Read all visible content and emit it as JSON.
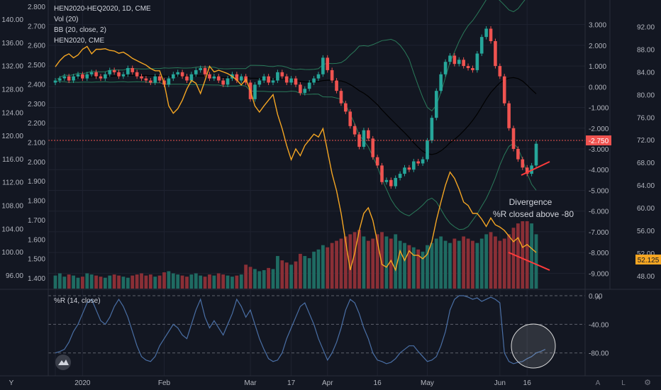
{
  "legend": {
    "symbol": "HEN2020-HEQ2020, 1D, CME",
    "vol": "Vol (20)",
    "bb": "BB (20, close, 2)",
    "overlay": "HEN2020, CME",
    "wr": "%R (14, close)"
  },
  "annotation": {
    "line1": "Divergence",
    "line2": "%R closed above -80"
  },
  "badges": {
    "spread_last": "-2.750",
    "right_last": "52.125"
  },
  "colors": {
    "background": "#131722",
    "up": "#26a69a",
    "down": "#ef5350",
    "overlay_line": "#f5a623",
    "bb_band": "#2a7a5a",
    "bb_basis": "#000000",
    "wr_line": "#4a6fa5",
    "annotation_line": "#ff3b3b",
    "highlight_circle": "#e0e0e0"
  },
  "chart_data": [
    {
      "type": "candlestick",
      "name": "HEN2020-HEQ2020",
      "x_axis_labels": [
        "Y",
        "2020",
        "Feb",
        "Mar",
        "17",
        "Apr",
        "16",
        "May",
        "Jun",
        "16"
      ],
      "center_scale_ticks": [
        3.0,
        2.0,
        1.0,
        0.0,
        -1.0,
        -2.0,
        -3.0,
        -4.0,
        -5.0,
        -6.0,
        -7.0,
        -8.0,
        -9.0
      ],
      "ylim": [
        -9.5,
        3.5
      ],
      "close": [
        0.3,
        0.4,
        0.5,
        0.3,
        0.5,
        0.6,
        0.4,
        0.6,
        0.7,
        0.5,
        0.4,
        0.6,
        0.8,
        0.7,
        0.5,
        0.6,
        0.9,
        0.7,
        0.5,
        0.4,
        0.3,
        0.2,
        0.5,
        0.3,
        0.1,
        0.4,
        0.6,
        0.7,
        0.5,
        0.3,
        0.6,
        0.8,
        0.9,
        0.6,
        0.4,
        0.5,
        0.3,
        0.1,
        0.4,
        0.6,
        0.3,
        0.5,
        0.2,
        -0.6,
        0.1,
        0.3,
        0.5,
        0.2,
        0.3,
        0.7,
        0.5,
        0.2,
        0.4,
        0.1,
        -0.3,
        -0.1,
        0.2,
        0.4,
        0.6,
        1.4,
        0.8,
        0.3,
        -0.2,
        -0.8,
        -1.2,
        -1.9,
        -2.3,
        -2.9,
        -2.1,
        -2.5,
        -3.4,
        -3.8,
        -4.6,
        -4.5,
        -4.8,
        -4.4,
        -4.2,
        -3.9,
        -4.0,
        -3.6,
        -3.7,
        -3.5,
        -2.6,
        -1.5,
        -0.2,
        0.6,
        1.2,
        1.5,
        1.1,
        1.3,
        1.0,
        0.9,
        0.8,
        1.6,
        2.4,
        2.8,
        2.2,
        1.0,
        0.5,
        -0.8,
        -2.0,
        -3.0,
        -3.5,
        -3.9,
        -4.2,
        -3.8,
        -2.75
      ]
    },
    {
      "type": "line",
      "name": "HEN2020, CME",
      "right_scale_ticks": [
        92.0,
        88.0,
        84.0,
        80.0,
        76.0,
        72.0,
        68.0,
        64.0,
        60.0,
        56.0,
        52.0,
        48.0
      ],
      "ylim": [
        46.6,
        94.2
      ],
      "values": [
        84.9,
        86.0,
        86.8,
        87.2,
        86.5,
        87.0,
        88.0,
        88.5,
        87.2,
        88.0,
        88.0,
        88.1,
        87.8,
        87.7,
        87.3,
        87.5,
        87.0,
        86.4,
        86.0,
        85.6,
        85.2,
        84.6,
        84.2,
        84.2,
        82.0,
        78.0,
        76.7,
        77.5,
        79.0,
        81.0,
        82.5,
        82.0,
        80.2,
        82.5,
        85.0,
        84.0,
        84.3,
        84.0,
        83.7,
        83.2,
        82.6,
        81.7,
        82.7,
        80.7,
        78.0,
        76.9,
        78.0,
        79.0,
        80.0,
        76.5,
        74.0,
        71.0,
        68.5,
        70.4,
        69.2,
        71.0,
        72.0,
        73.0,
        72.5,
        74.0,
        70.0,
        66.0,
        63.0,
        59.0,
        54.0,
        49.0,
        52.0,
        56.0,
        59.0,
        60.0,
        57.8,
        54.0,
        50.0,
        49.5,
        50.7,
        49.0,
        52.4,
        50.7,
        52.4,
        51.6,
        51.6,
        51.0,
        51.8,
        54.0,
        57.8,
        61.0,
        64.0,
        66.3,
        65.2,
        63.3,
        61.0,
        60.4,
        59.0,
        59.0,
        58.0,
        56.7,
        58.2,
        57.0,
        56.6,
        56.0,
        55.0,
        54.0,
        54.7,
        53.0,
        53.5,
        52.8,
        52.1
      ]
    },
    {
      "type": "bar",
      "name": "Vol (20)",
      "values": [
        12,
        14,
        11,
        13,
        12,
        10,
        11,
        14,
        13,
        12,
        11,
        10,
        12,
        13,
        12,
        11,
        10,
        12,
        13,
        14,
        12,
        13,
        11,
        12,
        15,
        16,
        14,
        13,
        12,
        11,
        13,
        14,
        12,
        11,
        13,
        12,
        14,
        13,
        12,
        11,
        12,
        13,
        22,
        20,
        18,
        16,
        17,
        19,
        18,
        30,
        26,
        24,
        22,
        25,
        32,
        30,
        28,
        34,
        36,
        40,
        38,
        42,
        44,
        46,
        48,
        50,
        52,
        54,
        48,
        44,
        46,
        50,
        52,
        48,
        46,
        50,
        44,
        42,
        40,
        38,
        36,
        34,
        40,
        42,
        46,
        48,
        44,
        42,
        46,
        44,
        48,
        46,
        44,
        42,
        46,
        50,
        52,
        48,
        44,
        46,
        50,
        56,
        60,
        62,
        62,
        60,
        50
      ]
    },
    {
      "type": "line",
      "name": "%R (14, close)",
      "wr_scale_ticks": [
        0.0,
        -40.0,
        -80.0
      ],
      "ylim": [
        -110,
        5
      ],
      "values": [
        -80,
        -78,
        -75,
        -65,
        -50,
        -40,
        -25,
        -10,
        -5,
        -20,
        -35,
        -40,
        -30,
        -15,
        -5,
        -15,
        -30,
        -50,
        -70,
        -85,
        -90,
        -92,
        -85,
        -70,
        -60,
        -50,
        -40,
        -45,
        -55,
        -60,
        -40,
        -20,
        -5,
        -30,
        -45,
        -35,
        -45,
        -55,
        -40,
        -25,
        -5,
        -15,
        -30,
        -20,
        -40,
        -60,
        -75,
        -88,
        -92,
        -90,
        -80,
        -60,
        -45,
        -30,
        -15,
        -10,
        -25,
        -40,
        -60,
        -75,
        -90,
        -80,
        -65,
        -45,
        -20,
        -5,
        -10,
        -25,
        -45,
        -60,
        -80,
        -90,
        -92,
        -95,
        -93,
        -88,
        -80,
        -75,
        -70,
        -70,
        -78,
        -85,
        -92,
        -90,
        -85,
        -70,
        -50,
        -20,
        -5,
        0,
        0,
        -2,
        -5,
        -3,
        -8,
        -5,
        -2,
        -5,
        -10,
        -80,
        -92,
        -95,
        -93,
        -92,
        -88,
        -85,
        -80,
        -78,
        -75
      ]
    }
  ]
}
